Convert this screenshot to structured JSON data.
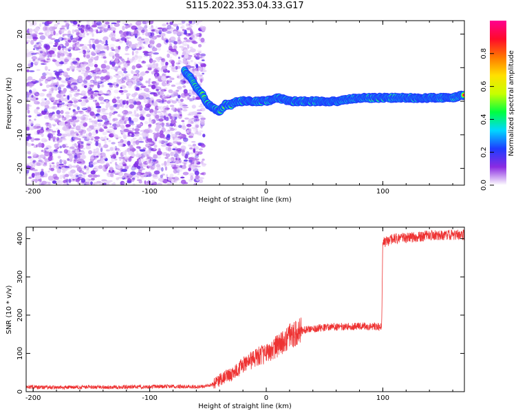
{
  "page": {
    "title": "S115.2022.353.04.33.G17"
  },
  "chart_data": [
    {
      "type": "heatmap",
      "title": "",
      "xlabel": "Height of straight line (km)",
      "ylabel": "Frequency (Hz)",
      "xlim": [
        -206,
        170
      ],
      "ylim": [
        -25,
        24
      ],
      "xticks": [
        -200,
        -100,
        0,
        100
      ],
      "yticks": [
        -20,
        -10,
        0,
        10,
        20
      ],
      "grid": false,
      "colorbar": {
        "label": "Normalized spectral amplitude",
        "range": [
          0.0,
          1.0
        ],
        "ticks": [
          0.0,
          0.2,
          0.4,
          0.6,
          0.8
        ],
        "colors": [
          "#ffffff",
          "#8a2be2",
          "#1e3cff",
          "#00d8ff",
          "#00ff40",
          "#c8ff00",
          "#ffe000",
          "#ff7800",
          "#ff0a2a",
          "#ff0090"
        ]
      },
      "noise_region_x": [
        -206,
        -58
      ],
      "signal_track": {
        "x": [
          -70,
          -65,
          -60,
          -55,
          -50,
          -45,
          -40,
          -35,
          -30,
          -25,
          -20,
          -10,
          0,
          10,
          20,
          40,
          60,
          80,
          90,
          100,
          120,
          140,
          160,
          170
        ],
        "y": [
          9,
          7,
          4,
          2,
          -1,
          -2,
          -3,
          -1,
          -1,
          0,
          0,
          0,
          0,
          1,
          0,
          0,
          0,
          1,
          1,
          1,
          1,
          1,
          1,
          2
        ]
      }
    },
    {
      "type": "line",
      "title": "",
      "xlabel": "Height of straight line (km)",
      "ylabel": "SNR (10 * v/v)",
      "xlim": [
        -206,
        170
      ],
      "ylim": [
        0,
        430
      ],
      "xticks": [
        -200,
        -100,
        0,
        100
      ],
      "yticks": [
        0,
        100,
        200,
        300,
        400
      ],
      "grid": false,
      "line_color": "#ee3333",
      "series": [
        {
          "x": [
            -206,
            -180,
            -150,
            -120,
            -100,
            -80,
            -60,
            -50,
            -45,
            -40,
            -35,
            -30,
            -25,
            -20,
            -15,
            -10,
            -5,
            0,
            5,
            10,
            15,
            20,
            25,
            30,
            40,
            50,
            60,
            70,
            80,
            90,
            99,
            100,
            110,
            120,
            130,
            140,
            150,
            160,
            170
          ],
          "y": [
            12,
            11,
            12,
            12,
            13,
            14,
            12,
            15,
            20,
            30,
            40,
            45,
            55,
            70,
            80,
            85,
            95,
            100,
            110,
            120,
            130,
            145,
            150,
            160,
            165,
            168,
            170,
            170,
            171,
            170,
            170,
            390,
            400,
            402,
            405,
            408,
            410,
            410,
            410
          ]
        }
      ]
    }
  ]
}
